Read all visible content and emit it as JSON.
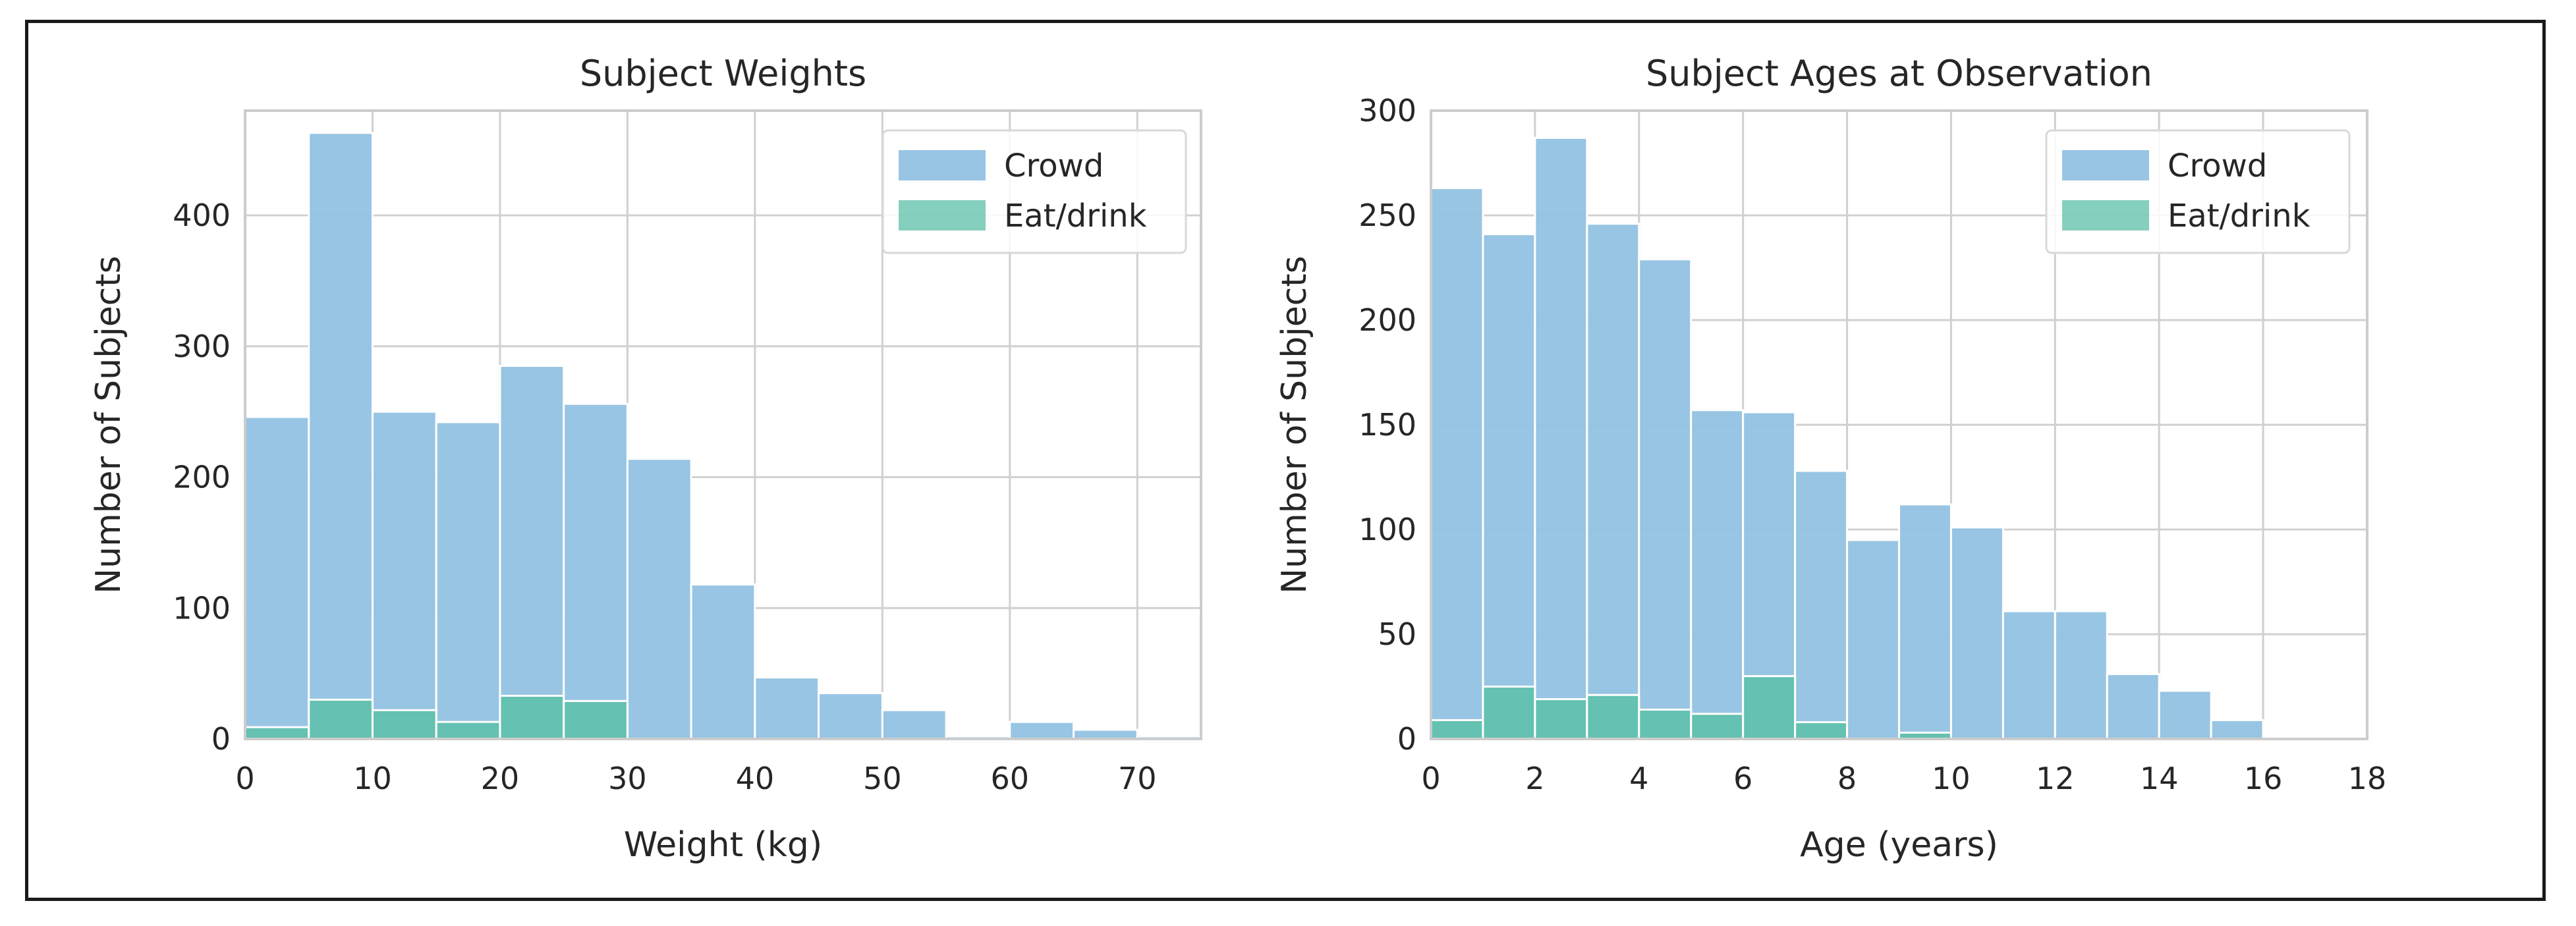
{
  "colors": {
    "crowd": "#92c2e2",
    "eat_drink": "#5cbfa8",
    "grid": "#d0d0d0",
    "spine": "#cccccc",
    "text": "#262626"
  },
  "chart_data": [
    {
      "type": "bar",
      "title": "Subject Weights",
      "xlabel": "Weight (kg)",
      "ylabel": "Number of Subjects",
      "xlim": [
        0,
        75
      ],
      "ylim": [
        0,
        480
      ],
      "xticks": [
        0,
        10,
        20,
        30,
        40,
        50,
        60,
        70
      ],
      "yticks": [
        0,
        100,
        200,
        300,
        400
      ],
      "bin_edges": [
        0,
        5,
        10,
        15,
        20,
        25,
        30,
        35,
        40,
        45,
        50,
        55,
        60,
        65,
        70,
        75
      ],
      "legend_position": "top-right",
      "series": [
        {
          "name": "Crowd",
          "values": [
            246,
            463,
            250,
            242,
            285,
            256,
            214,
            118,
            47,
            35,
            22,
            2,
            13,
            7,
            2
          ]
        },
        {
          "name": "Eat/drink",
          "values": [
            9,
            30,
            22,
            13,
            33,
            29,
            0,
            0,
            0,
            0,
            0,
            0,
            0,
            0,
            0
          ]
        }
      ]
    },
    {
      "type": "bar",
      "title": "Subject Ages at Observation",
      "xlabel": "Age (years)",
      "ylabel": "Number of Subjects",
      "xlim": [
        0,
        18
      ],
      "ylim": [
        0,
        300
      ],
      "xticks": [
        0,
        2,
        4,
        6,
        8,
        10,
        12,
        14,
        16,
        18
      ],
      "yticks": [
        0,
        50,
        100,
        150,
        200,
        250,
        300
      ],
      "bin_edges": [
        0,
        1,
        2,
        3,
        4,
        5,
        6,
        7,
        8,
        9,
        10,
        11,
        12,
        13,
        14,
        15,
        16,
        17,
        18
      ],
      "legend_position": "top-right",
      "series": [
        {
          "name": "Crowd",
          "values": [
            263,
            241,
            287,
            246,
            229,
            157,
            156,
            128,
            95,
            112,
            101,
            61,
            61,
            31,
            23,
            9,
            1,
            0
          ]
        },
        {
          "name": "Eat/drink",
          "values": [
            9,
            25,
            19,
            21,
            14,
            12,
            30,
            8,
            0,
            3,
            0,
            0,
            0,
            0,
            0,
            0,
            0,
            0
          ]
        }
      ]
    }
  ]
}
